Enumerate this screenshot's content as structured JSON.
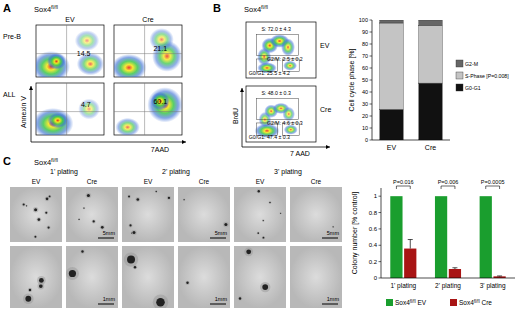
{
  "panels": {
    "a": {
      "label": "A",
      "title": "Sox4fl/fl",
      "columns": [
        "EV",
        "Cre"
      ],
      "rows": [
        {
          "name": "Pre-B",
          "values": [
            14.5,
            21.1
          ]
        },
        {
          "name": "ALL",
          "values": [
            4.7,
            60.1
          ]
        }
      ],
      "ylabel": "Annexin V",
      "xlabel": "7AAD"
    },
    "b": {
      "label": "B",
      "title": "Sox4fl/fl",
      "ylabel": "BrdU",
      "xlabel": "7 AAD",
      "plots": [
        {
          "name": "EV",
          "gates": [
            "S: 72.0 ± 4.3",
            "G2/M: 2.5 ± 0.2",
            "G0/G1: 25.5 ± 4.2"
          ]
        },
        {
          "name": "Cre",
          "gates": [
            "S: 48.0 ± 0.3",
            "G2/M: 4.6 ± 0.3",
            "G0/G1: 47.4 ± 0.3"
          ]
        }
      ]
    },
    "c": {
      "label": "C",
      "title": "Sox4fl/fl",
      "platings": [
        "1' plating",
        "2' plating",
        "3' plating"
      ],
      "conditions": [
        "EV",
        "Cre"
      ],
      "scale_bars": [
        "5mm",
        "1mm"
      ]
    }
  },
  "chart_data": [
    {
      "type": "bar",
      "stacked": true,
      "categories": [
        "EV",
        "Cre"
      ],
      "ylabel": "Cell cycle phase [%]",
      "ylim": [
        0,
        100
      ],
      "yticks": [
        0,
        10,
        20,
        30,
        40,
        50,
        60,
        70,
        80,
        90,
        100
      ],
      "legend": "right",
      "series": [
        {
          "name": "G0-G1",
          "color": "#111111",
          "values": [
            25.5,
            47.4
          ]
        },
        {
          "name": "S-Phase [P=0.008]",
          "color": "#c4c4c4",
          "values": [
            72.0,
            48.0
          ]
        },
        {
          "name": "G2-M",
          "color": "#666666",
          "values": [
            2.5,
            4.6
          ]
        }
      ]
    },
    {
      "type": "bar",
      "categories": [
        "1' plating",
        "2' plating",
        "3' plating"
      ],
      "ylabel": "Colony number [% control]",
      "ylim": [
        0,
        1.1
      ],
      "yticks": [
        0,
        0.2,
        0.4,
        0.6,
        0.8,
        1
      ],
      "legend": "bottom",
      "annotations": [
        "P=0.016",
        "P=0.006",
        "P=0.0005"
      ],
      "series": [
        {
          "name": "Sox4fl/fl EV",
          "color": "#1a9e2e",
          "values": [
            1,
            1,
            1
          ]
        },
        {
          "name": "Sox4fl/fl Cre",
          "color": "#a81414",
          "values": [
            0.36,
            0.11,
            0.02
          ],
          "error": [
            0.11,
            0.015,
            0.005
          ]
        }
      ]
    }
  ]
}
